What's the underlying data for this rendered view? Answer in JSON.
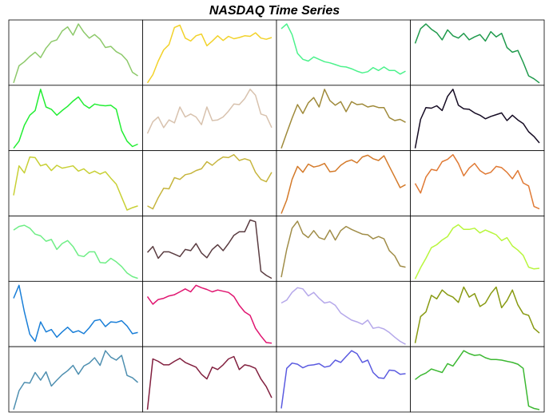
{
  "chart_data": {
    "type": "line",
    "title": "NASDAQ Time Series",
    "xlabel": "",
    "ylabel": "",
    "grid": false,
    "layout_rows": 6,
    "layout_cols": 4,
    "ylim": [
      0,
      100
    ],
    "series": [
      {
        "color": "#8dc96a",
        "values": [
          0,
          29,
          36,
          45,
          52,
          43,
          59,
          70,
          73,
          88,
          95,
          81,
          100,
          86,
          76,
          82,
          74,
          60,
          62,
          53,
          48,
          38,
          18,
          12
        ]
      },
      {
        "color": "#f2d22a",
        "values": [
          0,
          14,
          37,
          56,
          65,
          94,
          98,
          76,
          71,
          80,
          83,
          63,
          71,
          80,
          72,
          79,
          75,
          77,
          80,
          79,
          85,
          76,
          74,
          77
        ]
      },
      {
        "color": "#4cf28c",
        "values": [
          92,
          100,
          82,
          50,
          40,
          37,
          44,
          40,
          36,
          34,
          31,
          28,
          27,
          24,
          20,
          17,
          19,
          26,
          21,
          27,
          21,
          21,
          15,
          20
        ]
      },
      {
        "color": "#1f9a4c",
        "values": [
          67,
          92,
          100,
          91,
          85,
          73,
          90,
          80,
          76,
          84,
          73,
          78,
          82,
          71,
          87,
          78,
          84,
          60,
          52,
          55,
          35,
          12,
          7,
          0
        ]
      },
      {
        "color": "#22ee33",
        "values": [
          0,
          12,
          39,
          56,
          64,
          100,
          70,
          66,
          56,
          64,
          71,
          80,
          87,
          74,
          68,
          75,
          73,
          72,
          73,
          66,
          30,
          12,
          3,
          7
        ]
      },
      {
        "color": "#d8c2ae",
        "values": [
          25,
          45,
          53,
          35,
          48,
          43,
          70,
          53,
          58,
          53,
          40,
          70,
          47,
          48,
          53,
          63,
          75,
          74,
          84,
          100,
          90,
          58,
          55,
          35
        ]
      },
      {
        "color": "#9f8a3a",
        "values": [
          0,
          26,
          51,
          74,
          59,
          77,
          86,
          70,
          100,
          81,
          73,
          79,
          62,
          79,
          74,
          75,
          70,
          72,
          69,
          69,
          52,
          47,
          49,
          44
        ]
      },
      {
        "color": "#150b23",
        "values": [
          0,
          49,
          69,
          68,
          72,
          64,
          88,
          100,
          73,
          67,
          66,
          60,
          56,
          50,
          54,
          57,
          60,
          47,
          56,
          48,
          42,
          28,
          20,
          9
        ]
      },
      {
        "color": "#c8d035",
        "values": [
          31,
          81,
          69,
          96,
          95,
          81,
          84,
          73,
          82,
          77,
          79,
          81,
          72,
          76,
          68,
          72,
          67,
          71,
          60,
          50,
          28,
          6,
          10,
          13
        ]
      },
      {
        "color": "#c6b53d",
        "values": [
          13,
          8,
          27,
          43,
          42,
          61,
          58,
          66,
          68,
          73,
          76,
          88,
          82,
          90,
          96,
          95,
          100,
          90,
          93,
          90,
          70,
          58,
          54,
          70
        ]
      },
      {
        "color": "#d47a2a",
        "values": [
          0,
          23,
          58,
          80,
          70,
          84,
          79,
          81,
          85,
          71,
          72,
          82,
          88,
          91,
          86,
          96,
          99,
          93,
          90,
          98,
          80,
          62,
          44,
          49
        ]
      },
      {
        "color": "#e07a35",
        "values": [
          51,
          35,
          62,
          75,
          73,
          88,
          92,
          100,
          85,
          64,
          77,
          85,
          73,
          67,
          70,
          80,
          78,
          70,
          59,
          73,
          52,
          47,
          12,
          8
        ]
      },
      {
        "color": "#6fee86",
        "values": [
          83,
          89,
          91,
          86,
          76,
          73,
          64,
          67,
          50,
          60,
          65,
          55,
          40,
          38,
          46,
          46,
          28,
          27,
          35,
          29,
          21,
          10,
          4,
          1
        ]
      },
      {
        "color": "#5a3c41",
        "values": [
          45,
          55,
          35,
          46,
          46,
          42,
          38,
          50,
          48,
          60,
          44,
          36,
          50,
          58,
          48,
          60,
          74,
          80,
          80,
          100,
          97,
          13,
          6,
          1
        ]
      },
      {
        "color": "#a08d48",
        "values": [
          3,
          50,
          86,
          98,
          77,
          70,
          82,
          70,
          67,
          83,
          66,
          82,
          89,
          84,
          80,
          76,
          75,
          68,
          72,
          68,
          48,
          39,
          22,
          20
        ]
      },
      {
        "color": "#b8f63d",
        "values": [
          0,
          19,
          35,
          53,
          58,
          66,
          72,
          86,
          92,
          84,
          84,
          86,
          78,
          83,
          79,
          75,
          65,
          70,
          56,
          49,
          40,
          20,
          17,
          18
        ]
      },
      {
        "color": "#1a7fd8",
        "values": [
          78,
          100,
          55,
          17,
          5,
          38,
          21,
          25,
          12,
          21,
          29,
          20,
          23,
          18,
          28,
          40,
          42,
          30,
          38,
          37,
          40,
          31,
          18,
          20
        ]
      },
      {
        "color": "#e01570",
        "values": [
          81,
          68,
          76,
          78,
          82,
          84,
          89,
          94,
          89,
          100,
          96,
          93,
          89,
          92,
          90,
          88,
          81,
          66,
          55,
          49,
          27,
          14,
          3,
          2
        ]
      },
      {
        "color": "#b5a8ea",
        "values": [
          70,
          75,
          88,
          96,
          94,
          82,
          88,
          78,
          70,
          72,
          66,
          53,
          47,
          41,
          38,
          34,
          41,
          27,
          29,
          26,
          20,
          12,
          5,
          0
        ]
      },
      {
        "color": "#889a12",
        "values": [
          2,
          47,
          55,
          83,
          77,
          92,
          84,
          80,
          71,
          97,
          80,
          86,
          64,
          70,
          86,
          97,
          62,
          74,
          92,
          67,
          52,
          49,
          27,
          19
        ]
      },
      {
        "color": "#4e8fb0",
        "values": [
          0,
          32,
          46,
          45,
          63,
          50,
          64,
          40,
          50,
          59,
          66,
          75,
          60,
          74,
          79,
          88,
          75,
          100,
          89,
          84,
          92,
          58,
          54,
          46
        ]
      },
      {
        "color": "#82203f",
        "values": [
          0,
          86,
          82,
          76,
          76,
          82,
          87,
          80,
          76,
          72,
          60,
          52,
          72,
          68,
          76,
          86,
          90,
          68,
          76,
          74,
          70,
          52,
          39,
          20
        ]
      },
      {
        "color": "#5a5ae0",
        "values": [
          2,
          70,
          79,
          77,
          71,
          75,
          76,
          78,
          72,
          74,
          84,
          80,
          90,
          100,
          95,
          80,
          84,
          63,
          54,
          53,
          67,
          66,
          60,
          61
        ]
      },
      {
        "color": "#3cb832",
        "values": [
          51,
          58,
          62,
          69,
          66,
          63,
          78,
          74,
          87,
          100,
          95,
          92,
          93,
          88,
          85,
          85,
          84,
          82,
          80,
          77,
          70,
          6,
          2,
          0
        ]
      }
    ]
  }
}
